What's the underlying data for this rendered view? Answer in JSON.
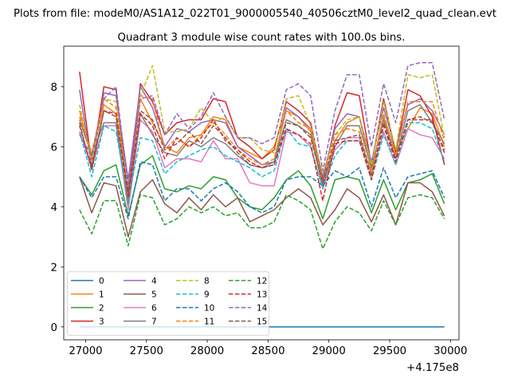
{
  "figure": {
    "suptitle": "Plots from file: modeM0/AS1A12_022T01_9000005540_40506cztM0_level2_quad_clean.evt",
    "title": "Quadrant 3 module wise count rates with 100.0s bins."
  },
  "chart_data": {
    "type": "line",
    "title": "Quadrant 3 module wise count rates with 100.0s bins.",
    "xlabel": "",
    "ylabel": "",
    "x_offset_label": "+4.175e8",
    "x_offset": 417500000,
    "xlim": [
      26820,
      30070
    ],
    "ylim": [
      -0.43,
      9.35
    ],
    "xticks": [
      27000,
      27500,
      28000,
      28500,
      29000,
      29500,
      30000
    ],
    "xtick_labels": [
      "27000",
      "27500",
      "28000",
      "28500",
      "29000",
      "29500",
      "30000"
    ],
    "yticks": [
      0,
      2,
      4,
      6,
      8
    ],
    "ytick_labels": [
      "0",
      "2",
      "4",
      "6",
      "8"
    ],
    "grid": false,
    "legend_position": "lower left",
    "legend_columns": 4,
    "x": [
      26950,
      27050,
      27150,
      27250,
      27350,
      27450,
      27550,
      27650,
      27750,
      27850,
      27950,
      28050,
      28150,
      28250,
      28350,
      28450,
      28550,
      28650,
      28750,
      28850,
      28950,
      29050,
      29150,
      29250,
      29350,
      29450,
      29550,
      29650,
      29750,
      29850,
      29950
    ],
    "series": [
      {
        "name": "0",
        "color": "#1f77b4",
        "dash": "solid",
        "values": [
          0,
          0,
          0,
          0,
          0,
          0,
          0,
          0,
          0,
          0,
          0,
          0,
          0,
          0,
          0,
          0,
          0,
          0,
          0,
          0,
          0,
          0,
          0,
          0,
          0,
          0,
          0,
          0,
          0,
          0,
          0
        ]
      },
      {
        "name": "1",
        "color": "#ff7f0e",
        "dash": "solid",
        "values": [
          7.2,
          5.6,
          7.4,
          7.1,
          4.5,
          7.6,
          6.8,
          6.0,
          5.8,
          6.3,
          6.4,
          7.0,
          6.9,
          6.0,
          5.8,
          5.6,
          6.0,
          7.2,
          7.0,
          6.5,
          4.8,
          6.2,
          6.8,
          7.0,
          5.2,
          7.0,
          5.8,
          6.6,
          7.3,
          7.1,
          6.0
        ]
      },
      {
        "name": "2",
        "color": "#2ca02c",
        "dash": "solid",
        "values": [
          5.0,
          4.4,
          5.2,
          5.4,
          3.7,
          5.4,
          5.7,
          4.6,
          4.5,
          4.7,
          4.6,
          5.0,
          4.9,
          4.3,
          4.0,
          3.9,
          4.3,
          4.9,
          5.2,
          4.7,
          3.6,
          4.9,
          5.0,
          4.9,
          3.8,
          4.9,
          3.9,
          4.8,
          4.9,
          5.1,
          4.1
        ]
      },
      {
        "name": "3",
        "color": "#d62728",
        "dash": "solid",
        "values": [
          8.5,
          5.4,
          8.0,
          7.9,
          4.3,
          8.1,
          7.5,
          6.4,
          6.8,
          6.9,
          6.9,
          7.6,
          7.5,
          6.3,
          6.0,
          5.6,
          5.9,
          7.5,
          7.2,
          6.8,
          4.9,
          6.7,
          7.8,
          7.7,
          5.4,
          7.6,
          5.8,
          7.9,
          7.7,
          7.0,
          5.4
        ]
      },
      {
        "name": "4",
        "color": "#9467bd",
        "dash": "solid",
        "values": [
          7.9,
          5.3,
          7.8,
          7.7,
          4.9,
          8.0,
          7.3,
          6.0,
          6.6,
          6.5,
          6.8,
          6.9,
          6.8,
          6.0,
          5.7,
          5.4,
          5.5,
          7.3,
          7.0,
          6.6,
          5.0,
          6.6,
          7.1,
          7.0,
          5.5,
          7.3,
          5.9,
          7.4,
          7.6,
          7.2,
          6.4
        ]
      },
      {
        "name": "5",
        "color": "#8c564b",
        "dash": "solid",
        "values": [
          5.0,
          3.8,
          4.8,
          4.7,
          3.0,
          4.5,
          4.9,
          4.1,
          3.8,
          4.3,
          3.9,
          4.4,
          4.0,
          4.3,
          3.5,
          3.7,
          3.9,
          4.3,
          4.6,
          4.3,
          3.4,
          3.9,
          4.6,
          4.3,
          3.5,
          4.4,
          3.4,
          4.8,
          4.8,
          4.5,
          3.7
        ]
      },
      {
        "name": "6",
        "color": "#e377c2",
        "dash": "solid",
        "values": [
          6.5,
          5.3,
          6.7,
          6.7,
          3.9,
          6.9,
          6.5,
          5.3,
          5.6,
          5.6,
          5.5,
          6.2,
          5.6,
          5.6,
          4.8,
          4.7,
          4.7,
          6.5,
          6.4,
          6.0,
          4.6,
          5.9,
          6.3,
          6.3,
          5.1,
          6.5,
          5.4,
          6.6,
          6.4,
          6.3,
          5.6
        ]
      },
      {
        "name": "7",
        "color": "#7f7f7f",
        "dash": "solid",
        "values": [
          6.9,
          5.7,
          6.8,
          6.8,
          4.1,
          7.1,
          6.4,
          5.8,
          5.7,
          6.2,
          6.0,
          6.3,
          6.1,
          5.7,
          5.4,
          5.3,
          5.5,
          6.9,
          6.7,
          6.4,
          4.7,
          6.0,
          6.7,
          6.7,
          5.3,
          6.9,
          5.6,
          7.2,
          7.4,
          6.8,
          6.1
        ]
      },
      {
        "name": "8",
        "color": "#bcbd22",
        "dash": "dashed",
        "values": [
          7.4,
          5.5,
          7.6,
          7.5,
          4.4,
          7.7,
          8.7,
          6.5,
          6.5,
          6.6,
          7.3,
          6.8,
          7.0,
          6.3,
          6.3,
          5.9,
          5.8,
          7.6,
          7.7,
          6.7,
          5.1,
          6.4,
          6.9,
          7.0,
          5.4,
          7.5,
          5.9,
          8.4,
          8.3,
          8.4,
          6.3
        ]
      },
      {
        "name": "9",
        "color": "#17becf",
        "dash": "dashed",
        "values": [
          6.5,
          5.0,
          6.7,
          6.5,
          4.2,
          6.3,
          6.2,
          5.1,
          5.5,
          5.7,
          5.9,
          6.0,
          5.7,
          5.5,
          5.3,
          5.0,
          5.2,
          6.6,
          6.1,
          6.0,
          4.6,
          5.7,
          6.2,
          6.2,
          4.9,
          6.4,
          5.4,
          6.8,
          6.8,
          6.6,
          5.5
        ]
      },
      {
        "name": "10",
        "color": "#1f77b4",
        "dash": "dashed",
        "values": [
          5.0,
          4.3,
          5.0,
          5.0,
          3.6,
          5.5,
          5.4,
          4.2,
          4.6,
          4.6,
          4.2,
          4.6,
          4.8,
          4.5,
          4.0,
          3.8,
          4.0,
          4.9,
          5.0,
          5.0,
          4.7,
          5.2,
          5.0,
          5.3,
          4.0,
          5.3,
          4.3,
          5.0,
          5.1,
          5.2,
          4.3
        ]
      },
      {
        "name": "11",
        "color": "#ff7f0e",
        "dash": "dashed",
        "values": [
          7.0,
          5.8,
          7.6,
          7.3,
          4.6,
          7.7,
          7.6,
          5.9,
          6.3,
          6.0,
          6.4,
          6.8,
          6.4,
          5.9,
          5.6,
          5.4,
          5.6,
          7.2,
          6.8,
          6.6,
          4.8,
          6.4,
          6.6,
          6.5,
          5.1,
          7.1,
          5.7,
          7.5,
          7.5,
          7.5,
          6.2
        ]
      },
      {
        "name": "12",
        "color": "#2ca02c",
        "dash": "dashed",
        "values": [
          3.9,
          3.1,
          4.2,
          4.2,
          2.7,
          4.4,
          4.3,
          3.4,
          3.6,
          4.0,
          3.8,
          4.0,
          3.7,
          3.8,
          3.3,
          3.3,
          3.5,
          4.4,
          4.2,
          3.9,
          2.6,
          3.5,
          4.0,
          3.8,
          3.2,
          4.2,
          3.4,
          4.3,
          4.4,
          4.3,
          3.6
        ]
      },
      {
        "name": "13",
        "color": "#d62728",
        "dash": "dashed",
        "values": [
          6.7,
          5.3,
          7.2,
          7.1,
          4.3,
          7.1,
          6.7,
          5.6,
          6.3,
          6.0,
          6.3,
          6.9,
          6.2,
          5.9,
          5.5,
          5.3,
          5.4,
          6.6,
          6.4,
          6.1,
          4.2,
          6.1,
          6.2,
          6.2,
          4.9,
          6.7,
          5.5,
          6.9,
          6.9,
          6.9,
          5.8
        ]
      },
      {
        "name": "14",
        "color": "#9467bd",
        "dash": "dashed",
        "values": [
          6.4,
          5.7,
          7.6,
          8.0,
          4.7,
          7.6,
          7.7,
          6.4,
          7.1,
          6.6,
          7.0,
          7.8,
          7.0,
          6.3,
          6.3,
          6.1,
          6.3,
          7.9,
          8.1,
          7.7,
          5.2,
          7.2,
          8.4,
          8.4,
          6.0,
          8.1,
          6.8,
          8.7,
          8.8,
          8.8,
          6.9
        ]
      },
      {
        "name": "15",
        "color": "#8c564b",
        "dash": "dashed",
        "values": [
          6.8,
          5.2,
          7.2,
          7.0,
          4.5,
          7.2,
          6.9,
          5.9,
          6.1,
          6.5,
          6.1,
          6.7,
          6.3,
          5.8,
          5.4,
          5.3,
          5.4,
          6.8,
          6.7,
          6.3,
          4.8,
          6.2,
          6.3,
          6.4,
          5.0,
          6.8,
          5.6,
          6.9,
          7.0,
          6.8,
          5.9
        ]
      }
    ]
  }
}
